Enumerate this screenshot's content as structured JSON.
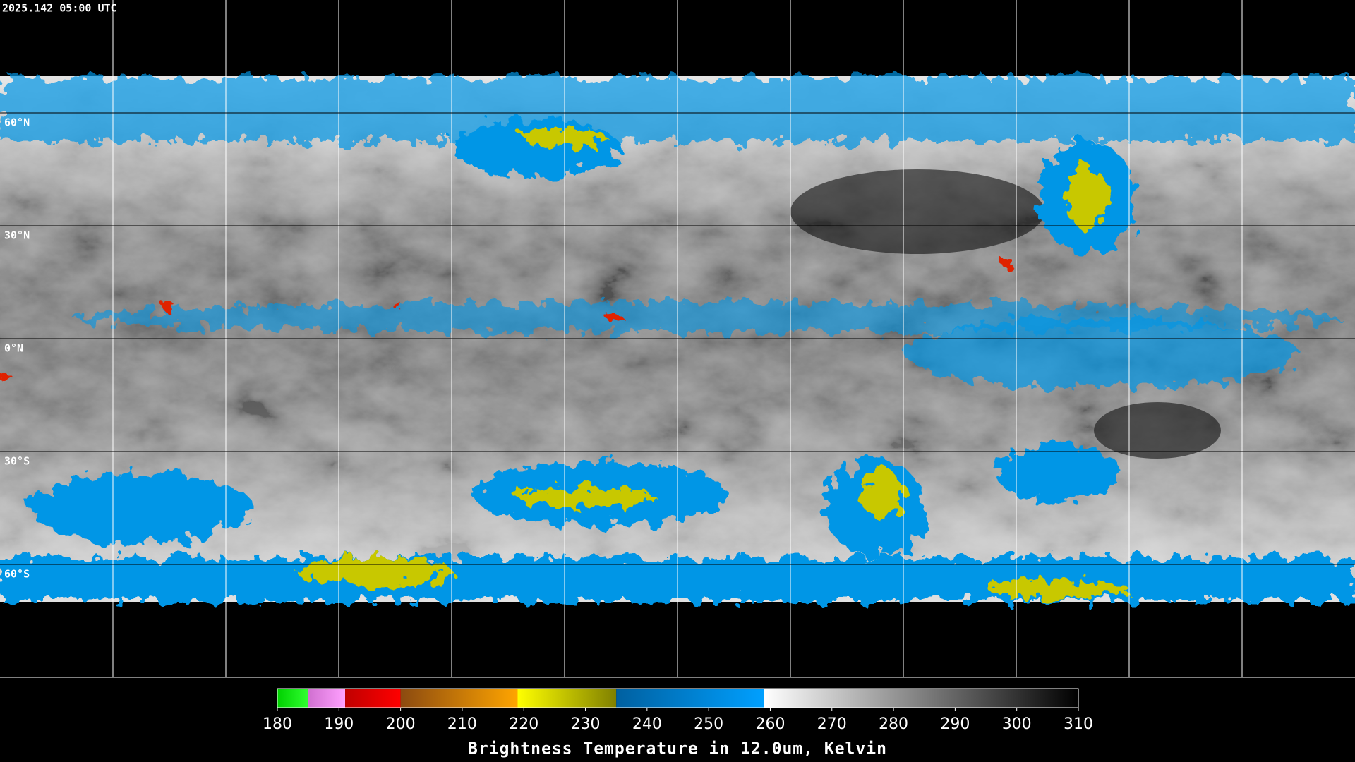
{
  "header": {
    "timestamp": "2025.142 05:00 UTC"
  },
  "map": {
    "lat_labels": [
      "60°N",
      "30°N",
      "0°N",
      "30°S",
      "60°S"
    ]
  },
  "colorbar": {
    "title": "Brightness Temperature in 12.0um, Kelvin",
    "range": [
      180,
      310
    ],
    "ticks": [
      180,
      190,
      200,
      210,
      220,
      230,
      240,
      250,
      260,
      270,
      280,
      290,
      300,
      310
    ],
    "segments": [
      {
        "from": 180,
        "to": 185,
        "colors": [
          "#00d000",
          "#30ff30"
        ]
      },
      {
        "from": 185,
        "to": 191,
        "colors": [
          "#d070d0",
          "#ffa0ff"
        ]
      },
      {
        "from": 191,
        "to": 200,
        "colors": [
          "#c00000",
          "#ff0000"
        ]
      },
      {
        "from": 200,
        "to": 219,
        "colors": [
          "#8b4a10",
          "#ffa500"
        ]
      },
      {
        "from": 219,
        "to": 235,
        "colors": [
          "#ffff00",
          "#808000"
        ]
      },
      {
        "from": 235,
        "to": 259,
        "colors": [
          "#0060a0",
          "#00a0ff"
        ]
      },
      {
        "from": 259,
        "to": 310,
        "colors": [
          "#ffffff",
          "#000000"
        ]
      }
    ]
  }
}
